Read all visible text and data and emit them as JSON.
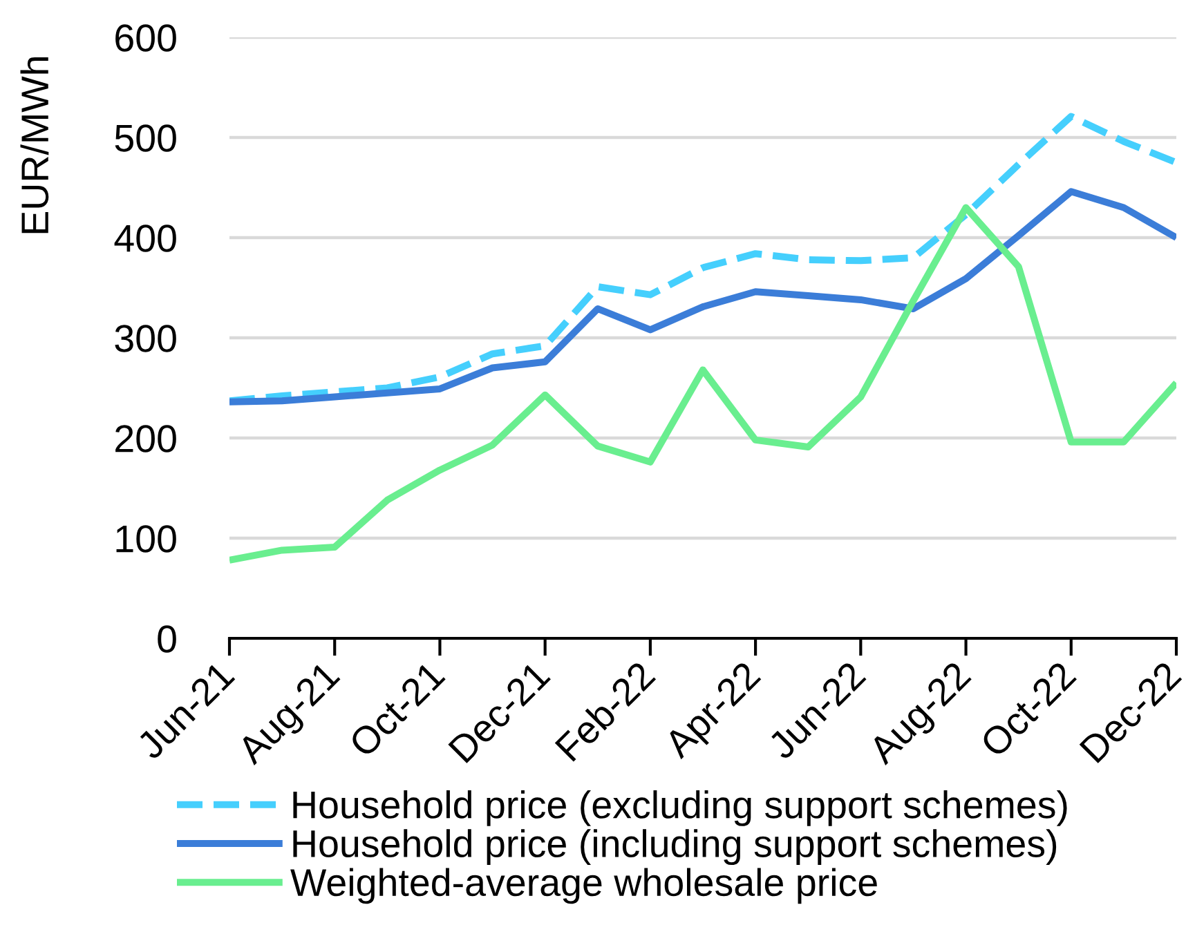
{
  "chart_data": {
    "type": "line",
    "ylabel": "EUR/MWh",
    "categories": [
      "Jun-21",
      null,
      "Aug-21",
      null,
      "Oct-21",
      null,
      "Dec-21",
      null,
      "Feb-22",
      null,
      "Apr-22",
      null,
      "Jun-22",
      null,
      "Aug-22",
      null,
      "Oct-22",
      null,
      "Dec-22"
    ],
    "ylim": [
      0,
      600
    ],
    "yticks": [
      0,
      100,
      200,
      300,
      400,
      500,
      600
    ],
    "grid": "y",
    "legend": "bottom",
    "series": [
      {
        "name": "Household price (excluding support schemes)",
        "color": "#45cffd",
        "line_style": "dashed",
        "values": [
          237,
          242,
          246,
          250,
          261,
          284,
          292,
          351,
          343,
          370,
          384,
          378,
          377,
          380,
          423,
          473,
          521,
          496,
          475
        ]
      },
      {
        "name": "Household price (including support schemes)",
        "color": "#3b7dd8",
        "line_style": "solid",
        "values": [
          236,
          237,
          241,
          245,
          249,
          270,
          276,
          329,
          308,
          331,
          346,
          342,
          338,
          329,
          359,
          402,
          446,
          430,
          400
        ]
      },
      {
        "name": "Weighted-average wholesale price",
        "color": "#69ee8f",
        "line_style": "solid",
        "values": [
          78,
          88,
          91,
          138,
          168,
          193,
          243,
          192,
          176,
          268,
          198,
          191,
          241,
          337,
          430,
          371,
          196,
          196,
          255
        ]
      }
    ]
  }
}
